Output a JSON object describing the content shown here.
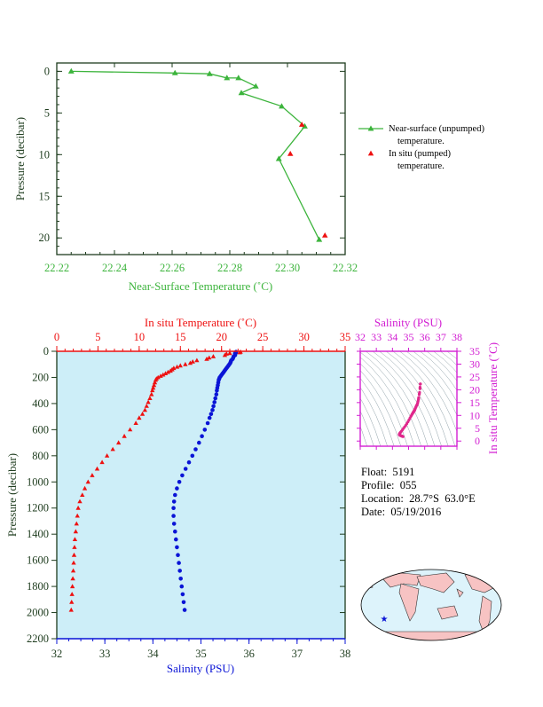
{
  "colors": {
    "green": "#3cb43c",
    "red": "#ee1111",
    "blue": "#0a14d6",
    "magenta": "#d21ed2",
    "axis_dark": "#1e3c1e",
    "panel_bg": "#cdeef8",
    "land": "#f7c3c3",
    "ocean": "#ddf3fb"
  },
  "info": {
    "float": "Float:  5191",
    "profile": "Profile:  055",
    "location": "Location:  28.7°S  63.0°E",
    "date": "Date:  05/19/2016"
  },
  "footer": "",
  "chart_data": [
    {
      "type": "line",
      "xlabel": "Near-Surface Temperature (˚C)",
      "ylabel": "Pressure (decibar)",
      "xlim": [
        22.22,
        22.32
      ],
      "ylim": [
        22,
        -1
      ],
      "xticks": [
        "22.22",
        "22.24",
        "22.26",
        "22.28",
        "22.30",
        "22.32"
      ],
      "yticks": [
        "0",
        "5",
        "10",
        "15",
        "20"
      ],
      "legend_position": "right",
      "legend": [
        {
          "marker": "line-triangle",
          "lines": [
            "Near-surface (unpumped)",
            "temperature."
          ]
        },
        {
          "marker": "triangle",
          "lines": [
            "In situ (pumped)",
            "temperature."
          ]
        }
      ],
      "series": [
        {
          "name": "Near-surface (unpumped) temperature.",
          "color": "#3cb43c",
          "x": [
            22.225,
            22.261,
            22.273,
            22.279,
            22.283,
            22.289,
            22.284,
            22.298,
            22.306,
            22.297,
            22.311
          ],
          "y": [
            0,
            0.2,
            0.3,
            0.8,
            0.8,
            1.8,
            2.6,
            4.2,
            6.6,
            10.5,
            20.2
          ]
        },
        {
          "name": "In situ (pumped) temperature.",
          "color": "#ee1111",
          "x": [
            22.305,
            22.301,
            22.313
          ],
          "y": [
            6.4,
            9.9,
            19.7
          ]
        }
      ]
    },
    {
      "type": "scatter",
      "title": "In situ Temperature (˚C)",
      "xlabel": "Salinity (PSU)",
      "ylabel": "Pressure (decibar)",
      "temperature_axis": {
        "range": [
          0,
          35
        ],
        "ticks": [
          "0",
          "5",
          "10",
          "15",
          "20",
          "25",
          "30",
          "35"
        ]
      },
      "salinity_axis": {
        "range": [
          32,
          38
        ],
        "ticks": [
          "32",
          "33",
          "34",
          "35",
          "36",
          "37",
          "38"
        ]
      },
      "pressure_axis": {
        "range": [
          0,
          2200
        ],
        "ticks": [
          "0",
          "200",
          "400",
          "600",
          "800",
          "1000",
          "1200",
          "1400",
          "1600",
          "1800",
          "2000",
          "2200"
        ]
      },
      "temperature_profile": {
        "color": "#ee1111",
        "pressure": [
          5,
          10,
          15,
          20,
          30,
          40,
          50,
          60,
          70,
          80,
          90,
          100,
          110,
          120,
          130,
          140,
          150,
          160,
          170,
          180,
          190,
          200,
          210,
          220,
          240,
          260,
          280,
          300,
          330,
          360,
          390,
          420,
          450,
          480,
          510,
          550,
          600,
          650,
          700,
          750,
          800,
          850,
          900,
          950,
          1000,
          1050,
          1100,
          1150,
          1200,
          1260,
          1320,
          1380,
          1440,
          1500,
          1560,
          1620,
          1680,
          1740,
          1800,
          1860,
          1920,
          1980
        ],
        "temperature": [
          22.3,
          22.2,
          21.0,
          20.6,
          20.4,
          19.0,
          18.5,
          18.2,
          17.0,
          16.5,
          16.2,
          15.6,
          15.0,
          14.6,
          14.2,
          14.0,
          13.8,
          13.5,
          13.2,
          12.9,
          12.6,
          12.3,
          12.1,
          12.0,
          11.9,
          11.8,
          11.7,
          11.6,
          11.5,
          11.3,
          11.1,
          10.9,
          10.7,
          10.4,
          10.0,
          9.6,
          8.9,
          8.2,
          7.5,
          6.8,
          6.1,
          5.5,
          4.9,
          4.3,
          3.8,
          3.4,
          3.1,
          2.8,
          2.6,
          2.5,
          2.4,
          2.3,
          2.2,
          2.15,
          2.1,
          2.05,
          2.0,
          1.95,
          1.9,
          1.85,
          1.8,
          1.75
        ]
      },
      "salinity_profile": {
        "color": "#0a14d6",
        "pressure": [
          5,
          10,
          15,
          20,
          30,
          40,
          50,
          60,
          70,
          80,
          90,
          100,
          110,
          120,
          130,
          140,
          150,
          160,
          170,
          180,
          190,
          200,
          210,
          220,
          240,
          260,
          280,
          300,
          330,
          360,
          390,
          420,
          450,
          480,
          510,
          550,
          600,
          650,
          700,
          750,
          800,
          850,
          900,
          950,
          1000,
          1050,
          1100,
          1150,
          1200,
          1260,
          1320,
          1380,
          1440,
          1500,
          1560,
          1620,
          1680,
          1740,
          1800,
          1860,
          1920,
          1980
        ],
        "salinity": [
          35.73,
          35.73,
          35.71,
          35.71,
          35.71,
          35.68,
          35.67,
          35.66,
          35.63,
          35.62,
          35.61,
          35.59,
          35.57,
          35.55,
          35.53,
          35.51,
          35.49,
          35.47,
          35.45,
          35.43,
          35.41,
          35.39,
          35.38,
          35.37,
          35.36,
          35.35,
          35.34,
          35.33,
          35.32,
          35.3,
          35.28,
          35.26,
          35.24,
          35.21,
          35.18,
          35.14,
          35.08,
          35.02,
          34.96,
          34.89,
          34.82,
          34.75,
          34.68,
          34.61,
          34.55,
          34.5,
          34.46,
          34.44,
          34.43,
          34.43,
          34.44,
          34.46,
          34.48,
          34.5,
          34.52,
          34.54,
          34.56,
          34.58,
          34.6,
          34.62,
          34.64,
          34.66
        ]
      }
    },
    {
      "type": "scatter",
      "title": "Salinity (PSU)",
      "ylabel": "In situ Temperature (˚C)",
      "xlim": [
        32,
        38
      ],
      "ylim": [
        -2,
        35
      ],
      "xticks": [
        "32",
        "33",
        "34",
        "35",
        "36",
        "37",
        "38"
      ],
      "yticks": [
        "0",
        "5",
        "10",
        "15",
        "20",
        "25",
        "30",
        "35"
      ],
      "color": "#e0288c"
    }
  ]
}
